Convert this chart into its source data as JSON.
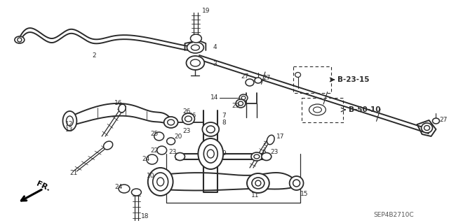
{
  "background_color": "#ffffff",
  "fig_width": 6.4,
  "fig_height": 3.19,
  "dpi": 100,
  "line_color": "#2a2a2a",
  "part_code": "SEP4B2710C",
  "callout1": "B-23-15",
  "callout2": "B-50-10"
}
